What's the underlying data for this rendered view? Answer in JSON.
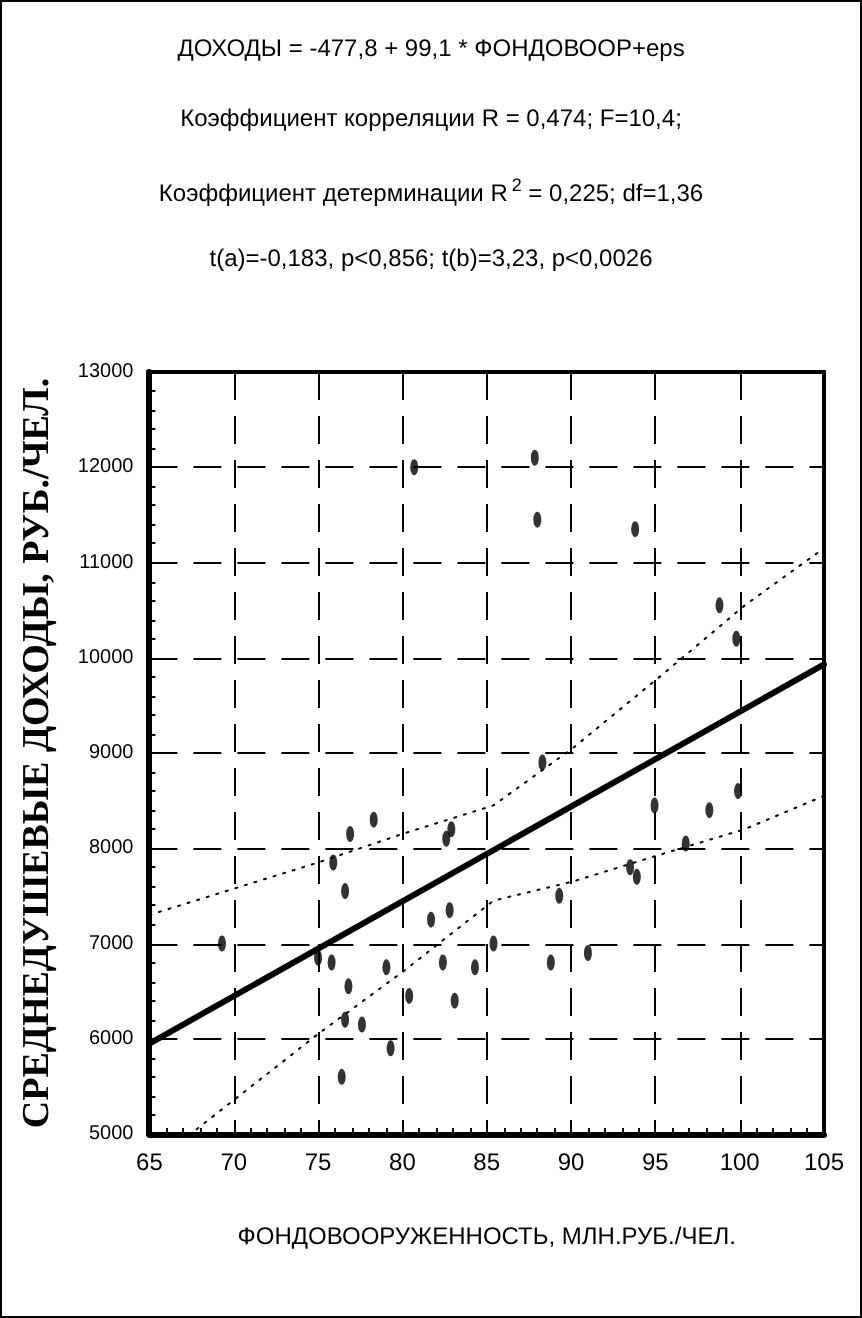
{
  "chart_data": {
    "type": "scatter",
    "title": "ДОХОДЫ = -477,8 + 99,1 * ФОНДОВООР+eps",
    "annotations": [
      "Коэффициент корреляции R = 0,474; F=10,4;",
      "Коэффициент детерминации R$^{2}$ = 0,225; df=1,36",
      "t(a)=-0,183, p<0,856; t(b)=3,23, p<0,0026"
    ],
    "xlabel": "ФОНДОВООРУЖЕННОСТЬ, МЛН.РУБ./ЧЕЛ.",
    "ylabel": "СРЕДНЕДУШЕВЫЕ ДОХОДЫ, РУБ./ЧЕЛ.",
    "xlim": [
      65,
      105
    ],
    "xticks": [
      65,
      70,
      75,
      80,
      85,
      90,
      95,
      100,
      105
    ],
    "ylim": [
      5000,
      13000
    ],
    "yticks": [
      5000,
      6000,
      7000,
      8000,
      9000,
      10000,
      11000,
      12000,
      13000
    ],
    "grid": true,
    "marker": "circle",
    "series": [
      {
        "color": "#000000",
        "x": [
          80.7,
          87.85,
          88.0,
          93.8,
          98.8,
          99.8,
          76.9,
          78.3,
          75.9,
          76.6,
          82.6,
          82.9,
          81.7,
          82.8,
          69.3,
          75.0,
          75.8,
          76.8,
          79.05,
          76.6,
          77.6,
          76.4,
          79.3,
          80.4,
          82.4,
          83.1,
          84.3,
          88.3,
          94.95,
          99.9,
          98.2,
          96.8,
          93.5,
          93.9,
          89.3,
          85.4,
          88.8,
          91.0
        ],
        "values": [
          12000,
          12100,
          11450,
          11350,
          10550,
          10200,
          8150,
          8300,
          7850,
          7550,
          8100,
          8200,
          7250,
          7350,
          7000,
          6850,
          6800,
          6550,
          6750,
          6200,
          6150,
          5600,
          5900,
          6450,
          6800,
          6400,
          6750,
          8900,
          8450,
          8600,
          8400,
          8050,
          7800,
          7700,
          7500,
          7000,
          6800,
          6900
        ]
      },
      {
        "type": "line",
        "color": "#000000",
        "line_style": "solid",
        "marker": "none",
        "x": [
          65,
          105
        ],
        "values": [
          5950,
          9930
        ]
      },
      {
        "type": "line",
        "color": "#000000",
        "line_style": "dotted",
        "marker": "none",
        "x": [
          65,
          75,
          80,
          85.4,
          90.1,
          95.6,
          100.3,
          105
        ],
        "values": [
          7300,
          7850,
          8150,
          8450,
          9050,
          9850,
          10550,
          11150
        ]
      },
      {
        "type": "line",
        "color": "#000000",
        "line_style": "dotted",
        "marker": "none",
        "x": [
          67.8,
          75,
          80,
          85.4,
          90.1,
          95.6,
          100.3,
          105
        ],
        "values": [
          5050,
          6050,
          6700,
          7450,
          7650,
          7950,
          8200,
          8550
        ]
      }
    ]
  }
}
